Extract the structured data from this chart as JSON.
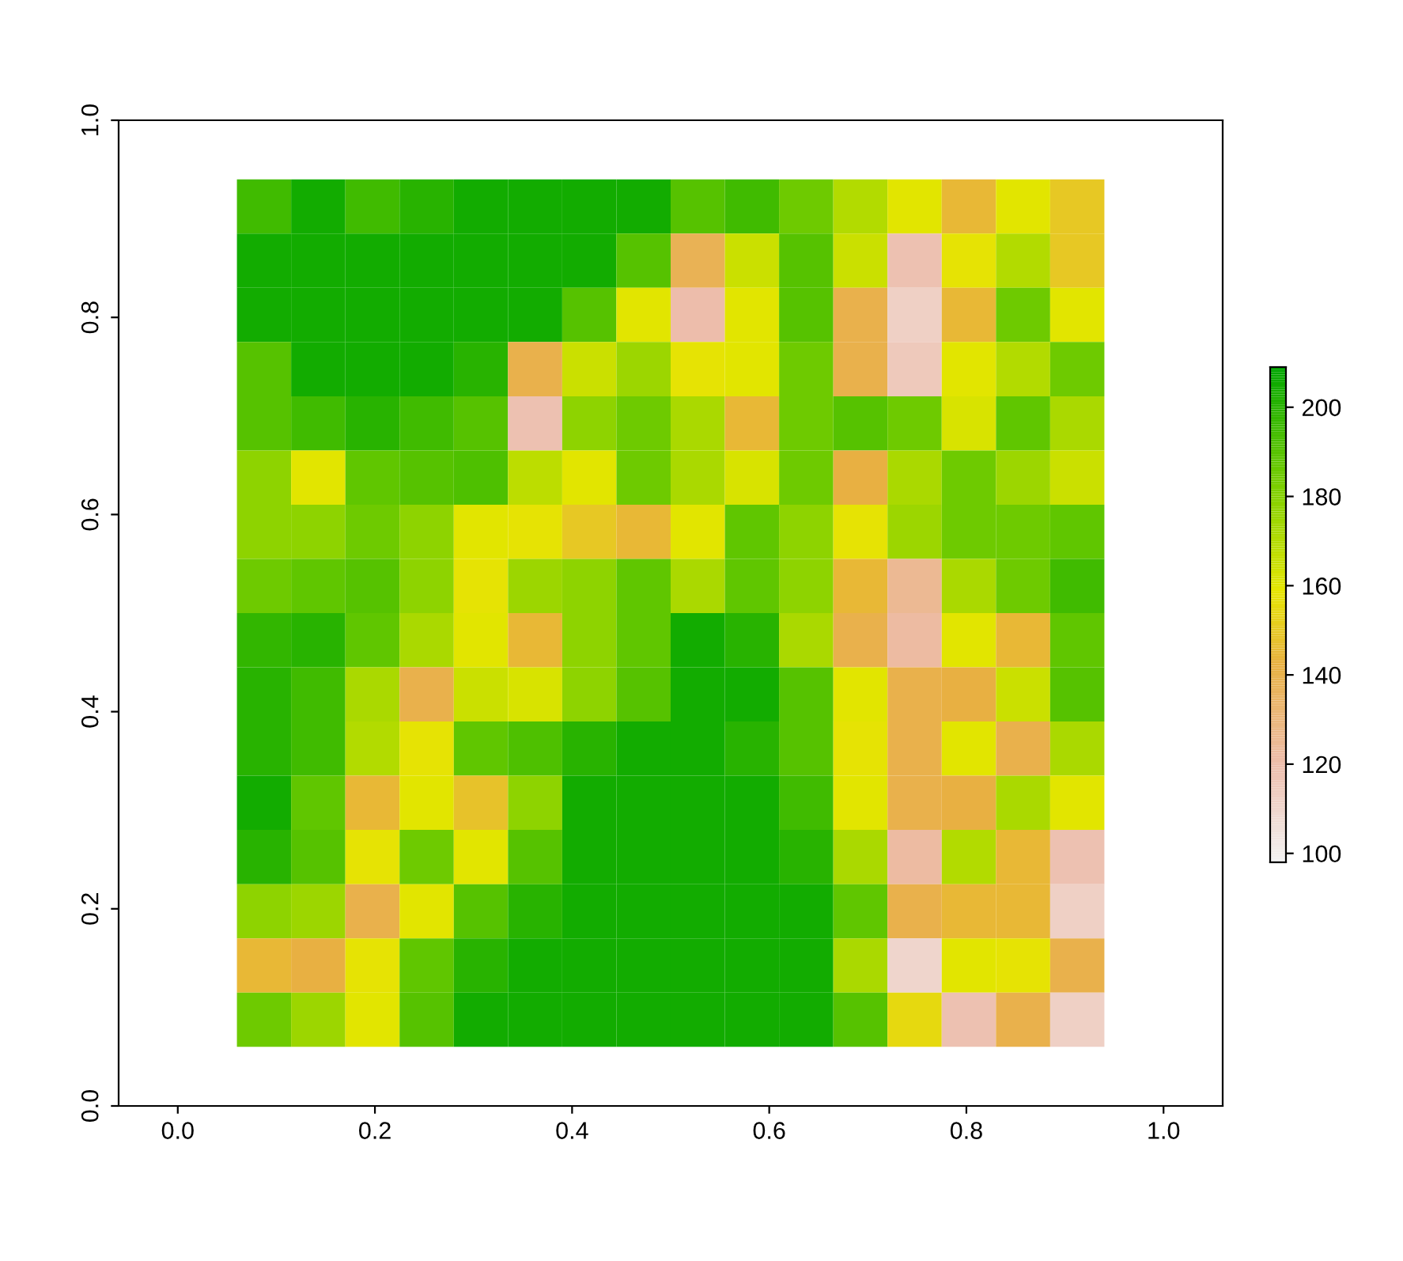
{
  "chart_data": {
    "type": "heatmap",
    "x": [
      0.0875,
      0.1425,
      0.1975,
      0.2525,
      0.3075,
      0.3625,
      0.4175,
      0.4725,
      0.5275,
      0.5825,
      0.6375,
      0.6925,
      0.7475,
      0.8025,
      0.8575,
      0.9125
    ],
    "y": [
      0.9125,
      0.8575,
      0.8025,
      0.7475,
      0.6925,
      0.6375,
      0.5825,
      0.5275,
      0.4725,
      0.4175,
      0.3625,
      0.3075,
      0.2525,
      0.1975,
      0.1425,
      0.0875
    ],
    "cells": [
      [
        195,
        205,
        195,
        200,
        205,
        205,
        205,
        205,
        190,
        195,
        185,
        170,
        160,
        145,
        160,
        150
      ],
      [
        205,
        205,
        205,
        205,
        205,
        205,
        205,
        190,
        138,
        165,
        190,
        165,
        118,
        158,
        170,
        150
      ],
      [
        205,
        205,
        205,
        205,
        205,
        205,
        190,
        160,
        120,
        160,
        190,
        140,
        112,
        145,
        185,
        160
      ],
      [
        190,
        205,
        205,
        205,
        200,
        140,
        165,
        175,
        158,
        160,
        185,
        140,
        115,
        160,
        170,
        185
      ],
      [
        190,
        195,
        200,
        195,
        190,
        118,
        178,
        185,
        172,
        145,
        185,
        190,
        185,
        162,
        188,
        172
      ],
      [
        178,
        160,
        188,
        190,
        192,
        168,
        160,
        185,
        172,
        162,
        185,
        142,
        172,
        185,
        175,
        165
      ],
      [
        178,
        178,
        185,
        178,
        160,
        158,
        150,
        145,
        160,
        188,
        178,
        158,
        175,
        185,
        185,
        188
      ],
      [
        185,
        188,
        190,
        178,
        158,
        175,
        178,
        188,
        172,
        188,
        178,
        145,
        125,
        172,
        185,
        195
      ],
      [
        198,
        200,
        188,
        172,
        160,
        145,
        178,
        188,
        205,
        200,
        172,
        140,
        122,
        160,
        145,
        188
      ],
      [
        200,
        195,
        172,
        140,
        165,
        162,
        178,
        190,
        205,
        205,
        190,
        160,
        140,
        142,
        165,
        190
      ],
      [
        200,
        195,
        170,
        158,
        188,
        192,
        200,
        205,
        205,
        200,
        190,
        158,
        140,
        160,
        140,
        172
      ],
      [
        205,
        188,
        145,
        160,
        148,
        178,
        205,
        205,
        205,
        205,
        195,
        160,
        140,
        142,
        172,
        160
      ],
      [
        200,
        190,
        158,
        185,
        160,
        190,
        205,
        205,
        205,
        205,
        200,
        172,
        122,
        170,
        145,
        118
      ],
      [
        178,
        175,
        140,
        160,
        190,
        200,
        205,
        205,
        205,
        205,
        205,
        188,
        140,
        145,
        145,
        112
      ],
      [
        145,
        142,
        158,
        188,
        200,
        205,
        205,
        205,
        205,
        205,
        205,
        172,
        110,
        160,
        158,
        140
      ],
      [
        185,
        175,
        160,
        190,
        205,
        205,
        205,
        205,
        205,
        205,
        205,
        190,
        155,
        118,
        140,
        112
      ]
    ],
    "clim": [
      98,
      209
    ],
    "cticks": [
      100,
      120,
      140,
      160,
      180,
      200
    ],
    "xlim": [
      -0.06,
      1.06
    ],
    "ylim": [
      0,
      1
    ],
    "xticks": [
      {
        "value": 0,
        "label": "0.0"
      },
      {
        "value": 0.2,
        "label": "0.2"
      },
      {
        "value": 0.4,
        "label": "0.4"
      },
      {
        "value": 0.6,
        "label": "0.6"
      },
      {
        "value": 0.8,
        "label": "0.8"
      },
      {
        "value": 1,
        "label": "1.0"
      }
    ],
    "yticks": [
      {
        "value": 0,
        "label": "0.0"
      },
      {
        "value": 0.2,
        "label": "0.2"
      },
      {
        "value": 0.4,
        "label": "0.4"
      },
      {
        "value": 0.6,
        "label": "0.6"
      },
      {
        "value": 0.8,
        "label": "0.8"
      },
      {
        "value": 1,
        "label": "1.0"
      }
    ],
    "grid": false
  }
}
